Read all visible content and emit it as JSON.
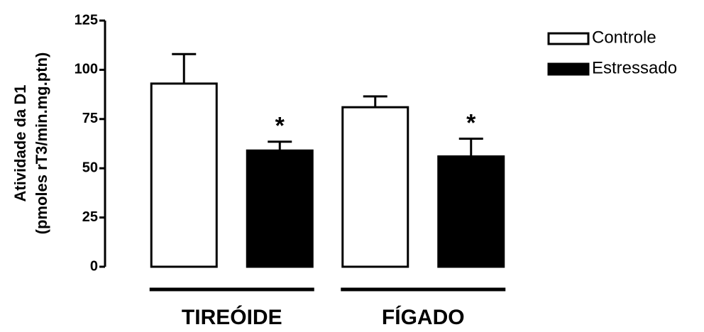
{
  "chart_data": {
    "type": "bar",
    "ylabel": [
      "Atividade da D1",
      "(pmoles rT3/min.mg.ptn)"
    ],
    "categories": [
      "TIREÓIDE",
      "FÍGADO"
    ],
    "series": [
      {
        "name": "Controle",
        "color": "#ffffff",
        "values": [
          93,
          81
        ],
        "errors": [
          15,
          5.5
        ]
      },
      {
        "name": "Estressado",
        "color": "#000000",
        "values": [
          59,
          56
        ],
        "errors": [
          4.5,
          9
        ],
        "annotations": [
          "*",
          "*"
        ]
      }
    ],
    "ylim": [
      0,
      125
    ],
    "yticks": [
      0,
      25,
      50,
      75,
      100,
      125
    ],
    "legend": "top-right"
  }
}
